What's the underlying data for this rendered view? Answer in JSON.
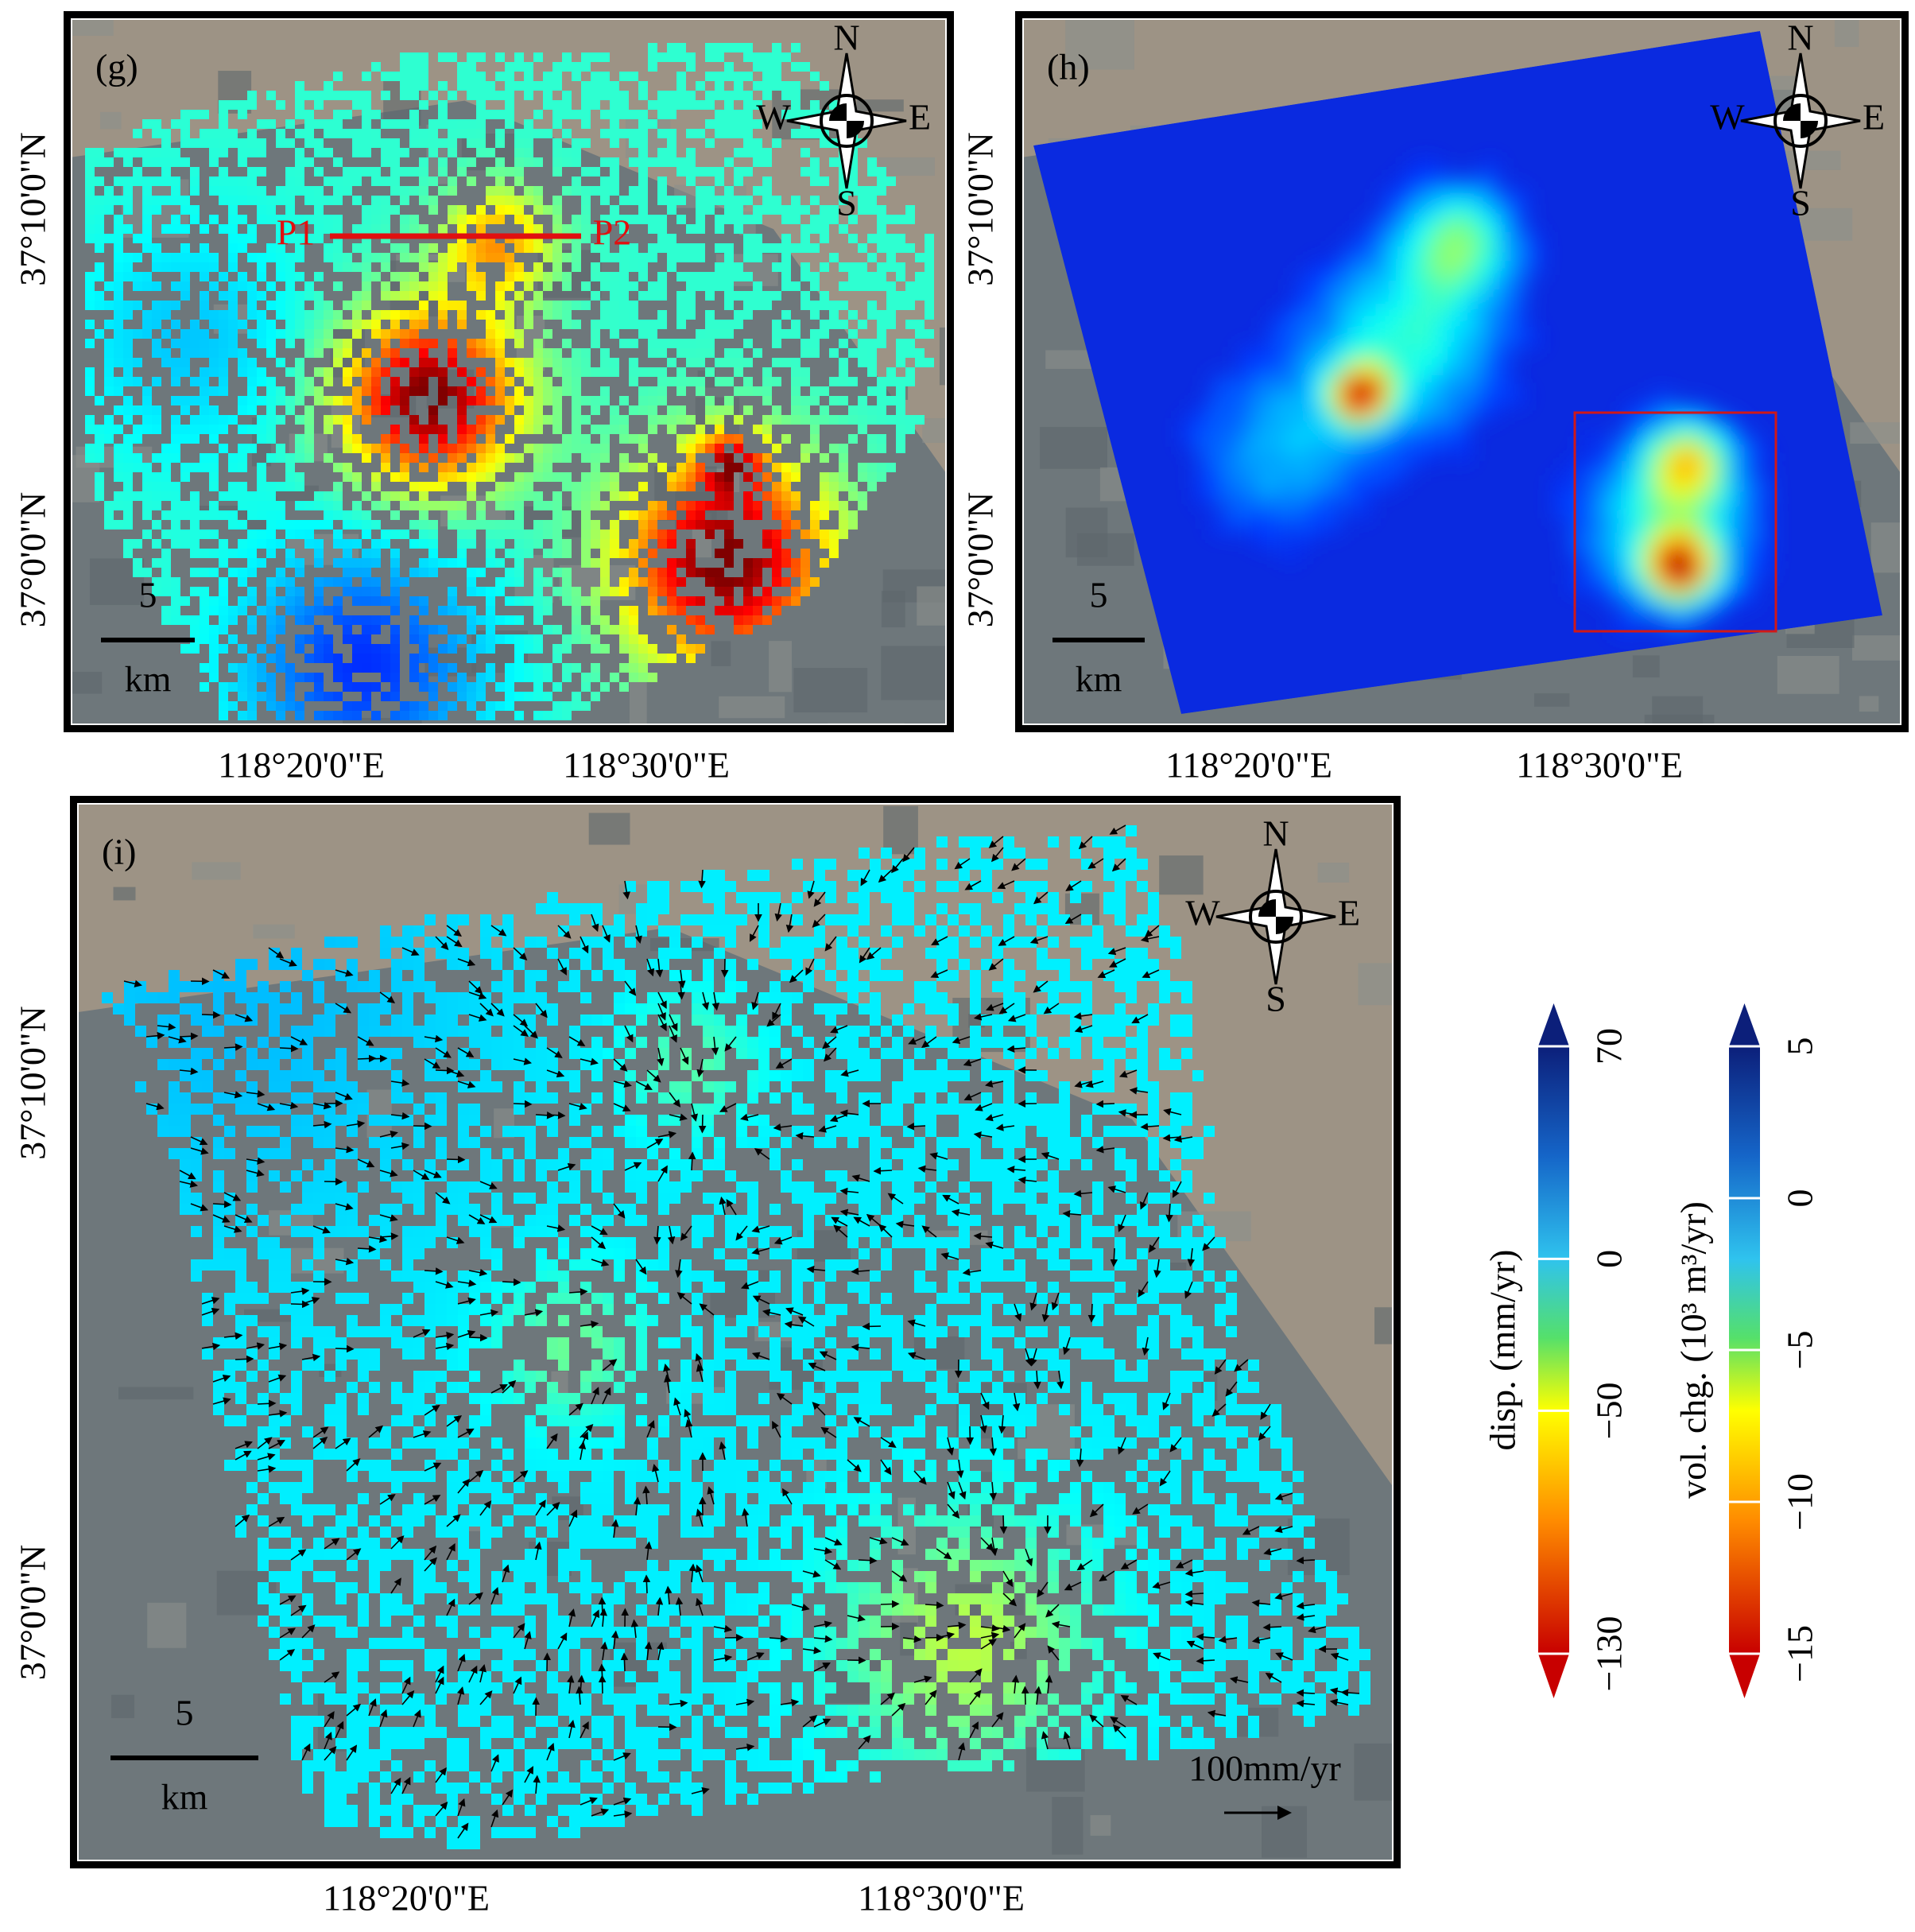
{
  "panels": [
    {
      "label": "(g)",
      "lat_labels": [
        "37°10'0\"N",
        "37°0'0\"N"
      ],
      "lon_labels": [
        "118°20'0\"E",
        "118°30'0\"E"
      ],
      "compass": {
        "n": "N",
        "s": "S",
        "w": "W",
        "e": "E"
      },
      "scale_bar": {
        "length": "5",
        "unit": "km"
      },
      "profile": [
        "P1",
        "P2"
      ]
    },
    {
      "label": "(h)",
      "lat_labels": [
        "37°10'0\"N",
        "37°0'0\"N"
      ],
      "lon_labels": [
        "118°20'0\"E",
        "118°30'0\"E"
      ],
      "compass": {
        "n": "N",
        "s": "S",
        "w": "W",
        "e": "E"
      },
      "scale_bar": {
        "length": "5",
        "unit": "km"
      }
    },
    {
      "label": "(i)",
      "lat_labels": [
        "37°10'0\"N",
        "37°0'0\"N"
      ],
      "lon_labels": [
        "118°20'0\"E",
        "118°30'0\"E"
      ],
      "compass": {
        "n": "N",
        "s": "S",
        "w": "W",
        "e": "E"
      },
      "scale_bar": {
        "length": "5",
        "unit": "km"
      },
      "vector_scale": "100mm/yr"
    }
  ],
  "colorbars": [
    {
      "title": "disp. (mm/yr)",
      "lim": [
        -130,
        70
      ],
      "ticks": [
        {
          "value": -130,
          "label": "−130"
        },
        {
          "value": -50,
          "label": "−50"
        },
        0,
        70
      ]
    },
    {
      "title": "vol. chg. (10³ m³/yr)",
      "lim": [
        -15,
        5
      ],
      "ticks": [
        {
          "value": -15,
          "label": "−15"
        },
        {
          "value": -10,
          "label": "−10"
        },
        {
          "value": -5,
          "label": "−5"
        },
        0,
        5
      ]
    }
  ]
}
